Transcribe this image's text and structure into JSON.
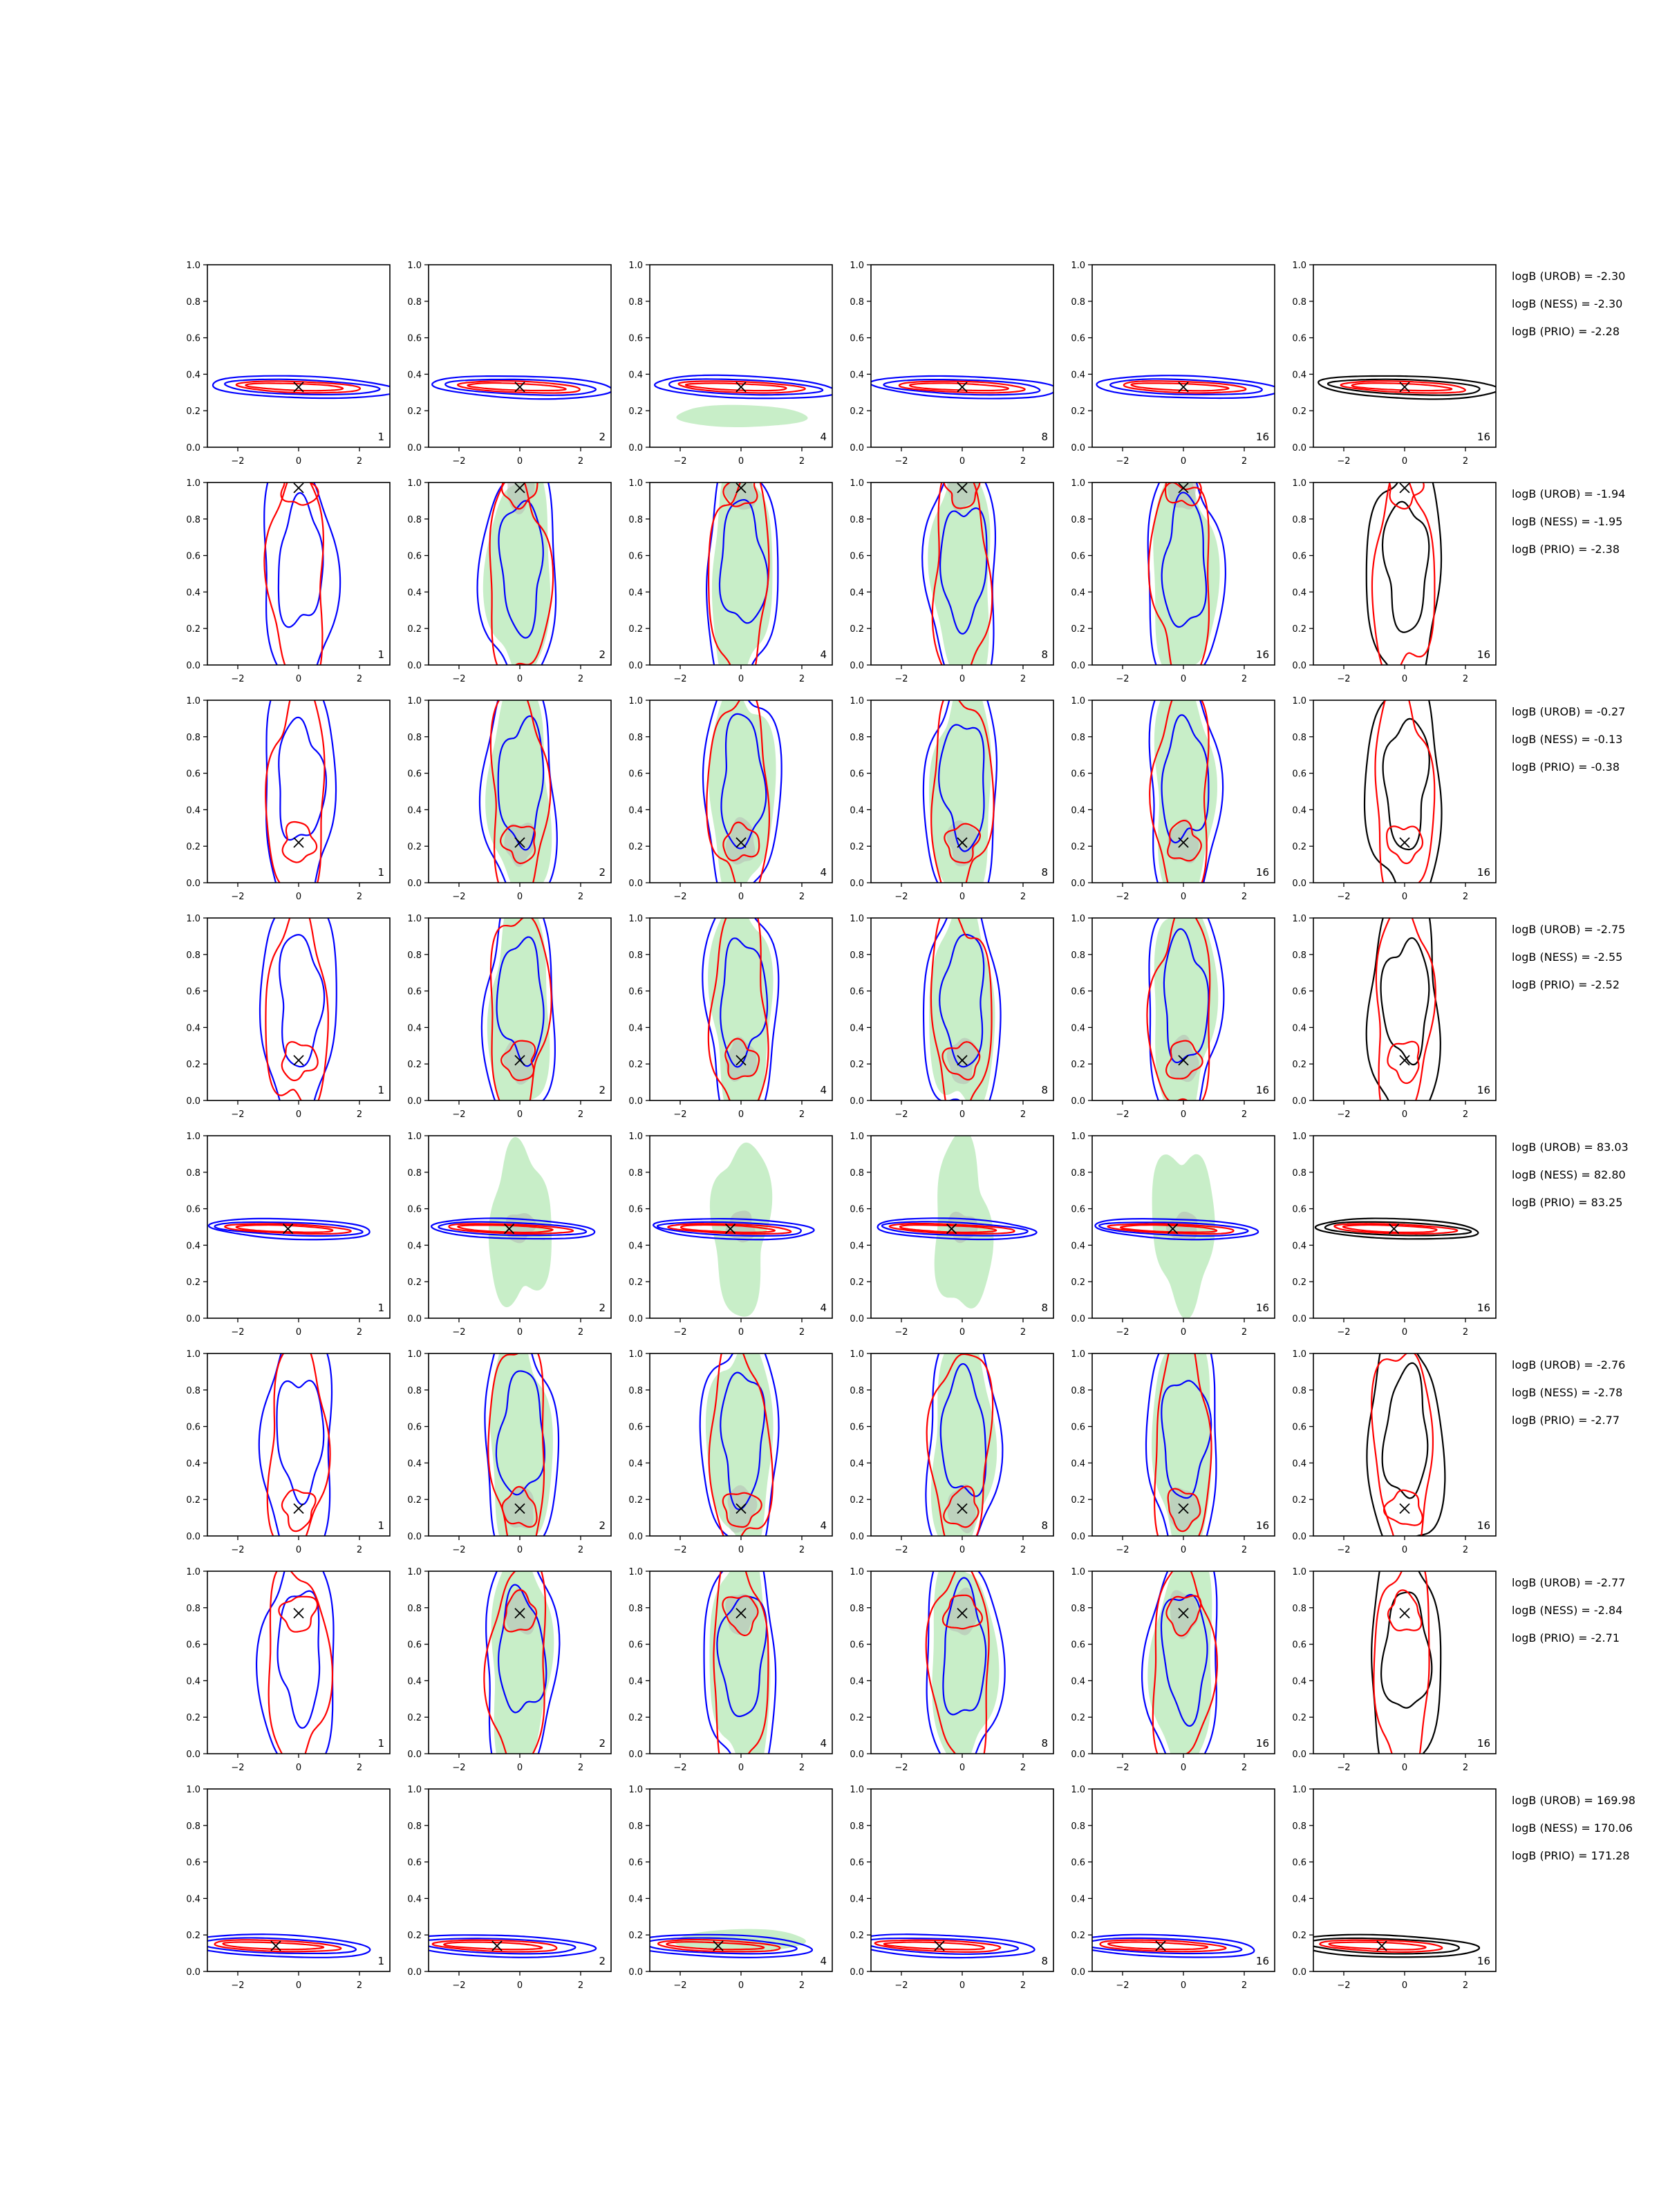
{
  "chart_data": {
    "type": "contour_grid",
    "rows": 8,
    "cols": 6,
    "panel_labels": [
      "1",
      "2",
      "4",
      "8",
      "16",
      "16"
    ],
    "xlim": [
      -3,
      3
    ],
    "ylim": [
      0,
      1
    ],
    "xticks": [
      -2,
      0,
      2
    ],
    "yticks": [
      0.0,
      0.2,
      0.4,
      0.6,
      0.8,
      1.0
    ],
    "ytick_labels": [
      "0.0",
      "0.2",
      "0.4",
      "0.6",
      "0.8",
      "1.0"
    ],
    "colors": {
      "blue": "#0000ff",
      "red": "#ff0000",
      "black": "#000000",
      "green_fill": "#c8eec8",
      "grey_fill": "#b4bcb4"
    },
    "row_shapes": [
      "flat_low",
      "tall_high",
      "tall_mid",
      "tall_mid",
      "flat_mid",
      "tall_mid",
      "tall_high",
      "flat_low"
    ],
    "markers": [
      {
        "x": 0,
        "y": 0.33
      },
      {
        "x": 0,
        "y": 0.97
      },
      {
        "x": 0,
        "y": 0.22
      },
      {
        "x": 0,
        "y": 0.22
      },
      {
        "x": -0.35,
        "y": 0.49
      },
      {
        "x": 0,
        "y": 0.15
      },
      {
        "x": 0,
        "y": 0.77
      },
      {
        "x": -0.75,
        "y": 0.14
      }
    ],
    "log_bayes_factors": [
      [
        "logB (UROB) = -2.30",
        "logB (NESS) = -2.30",
        "logB (PRIO) = -2.28"
      ],
      [
        "logB (UROB) = -1.94",
        "logB (NESS) = -1.95",
        "logB (PRIO) = -2.38"
      ],
      [
        "logB (UROB) = -0.27",
        "logB (NESS) = -0.13",
        "logB (PRIO) = -0.38"
      ],
      [
        "logB (UROB) = -2.75",
        "logB (NESS) = -2.55",
        "logB (PRIO) = -2.52"
      ],
      [
        "logB (UROB) = 83.03",
        "logB (NESS) = 82.80",
        "logB (PRIO) = 83.25"
      ],
      [
        "logB (UROB) = -2.76",
        "logB (NESS) = -2.78",
        "logB (PRIO) = -2.77"
      ],
      [
        "logB (UROB) = -2.77",
        "logB (NESS) = -2.84",
        "logB (PRIO) = -2.71"
      ],
      [
        "logB (UROB) = 169.98",
        "logB (NESS) = 170.06",
        "logB (PRIO) = 171.28"
      ]
    ]
  }
}
